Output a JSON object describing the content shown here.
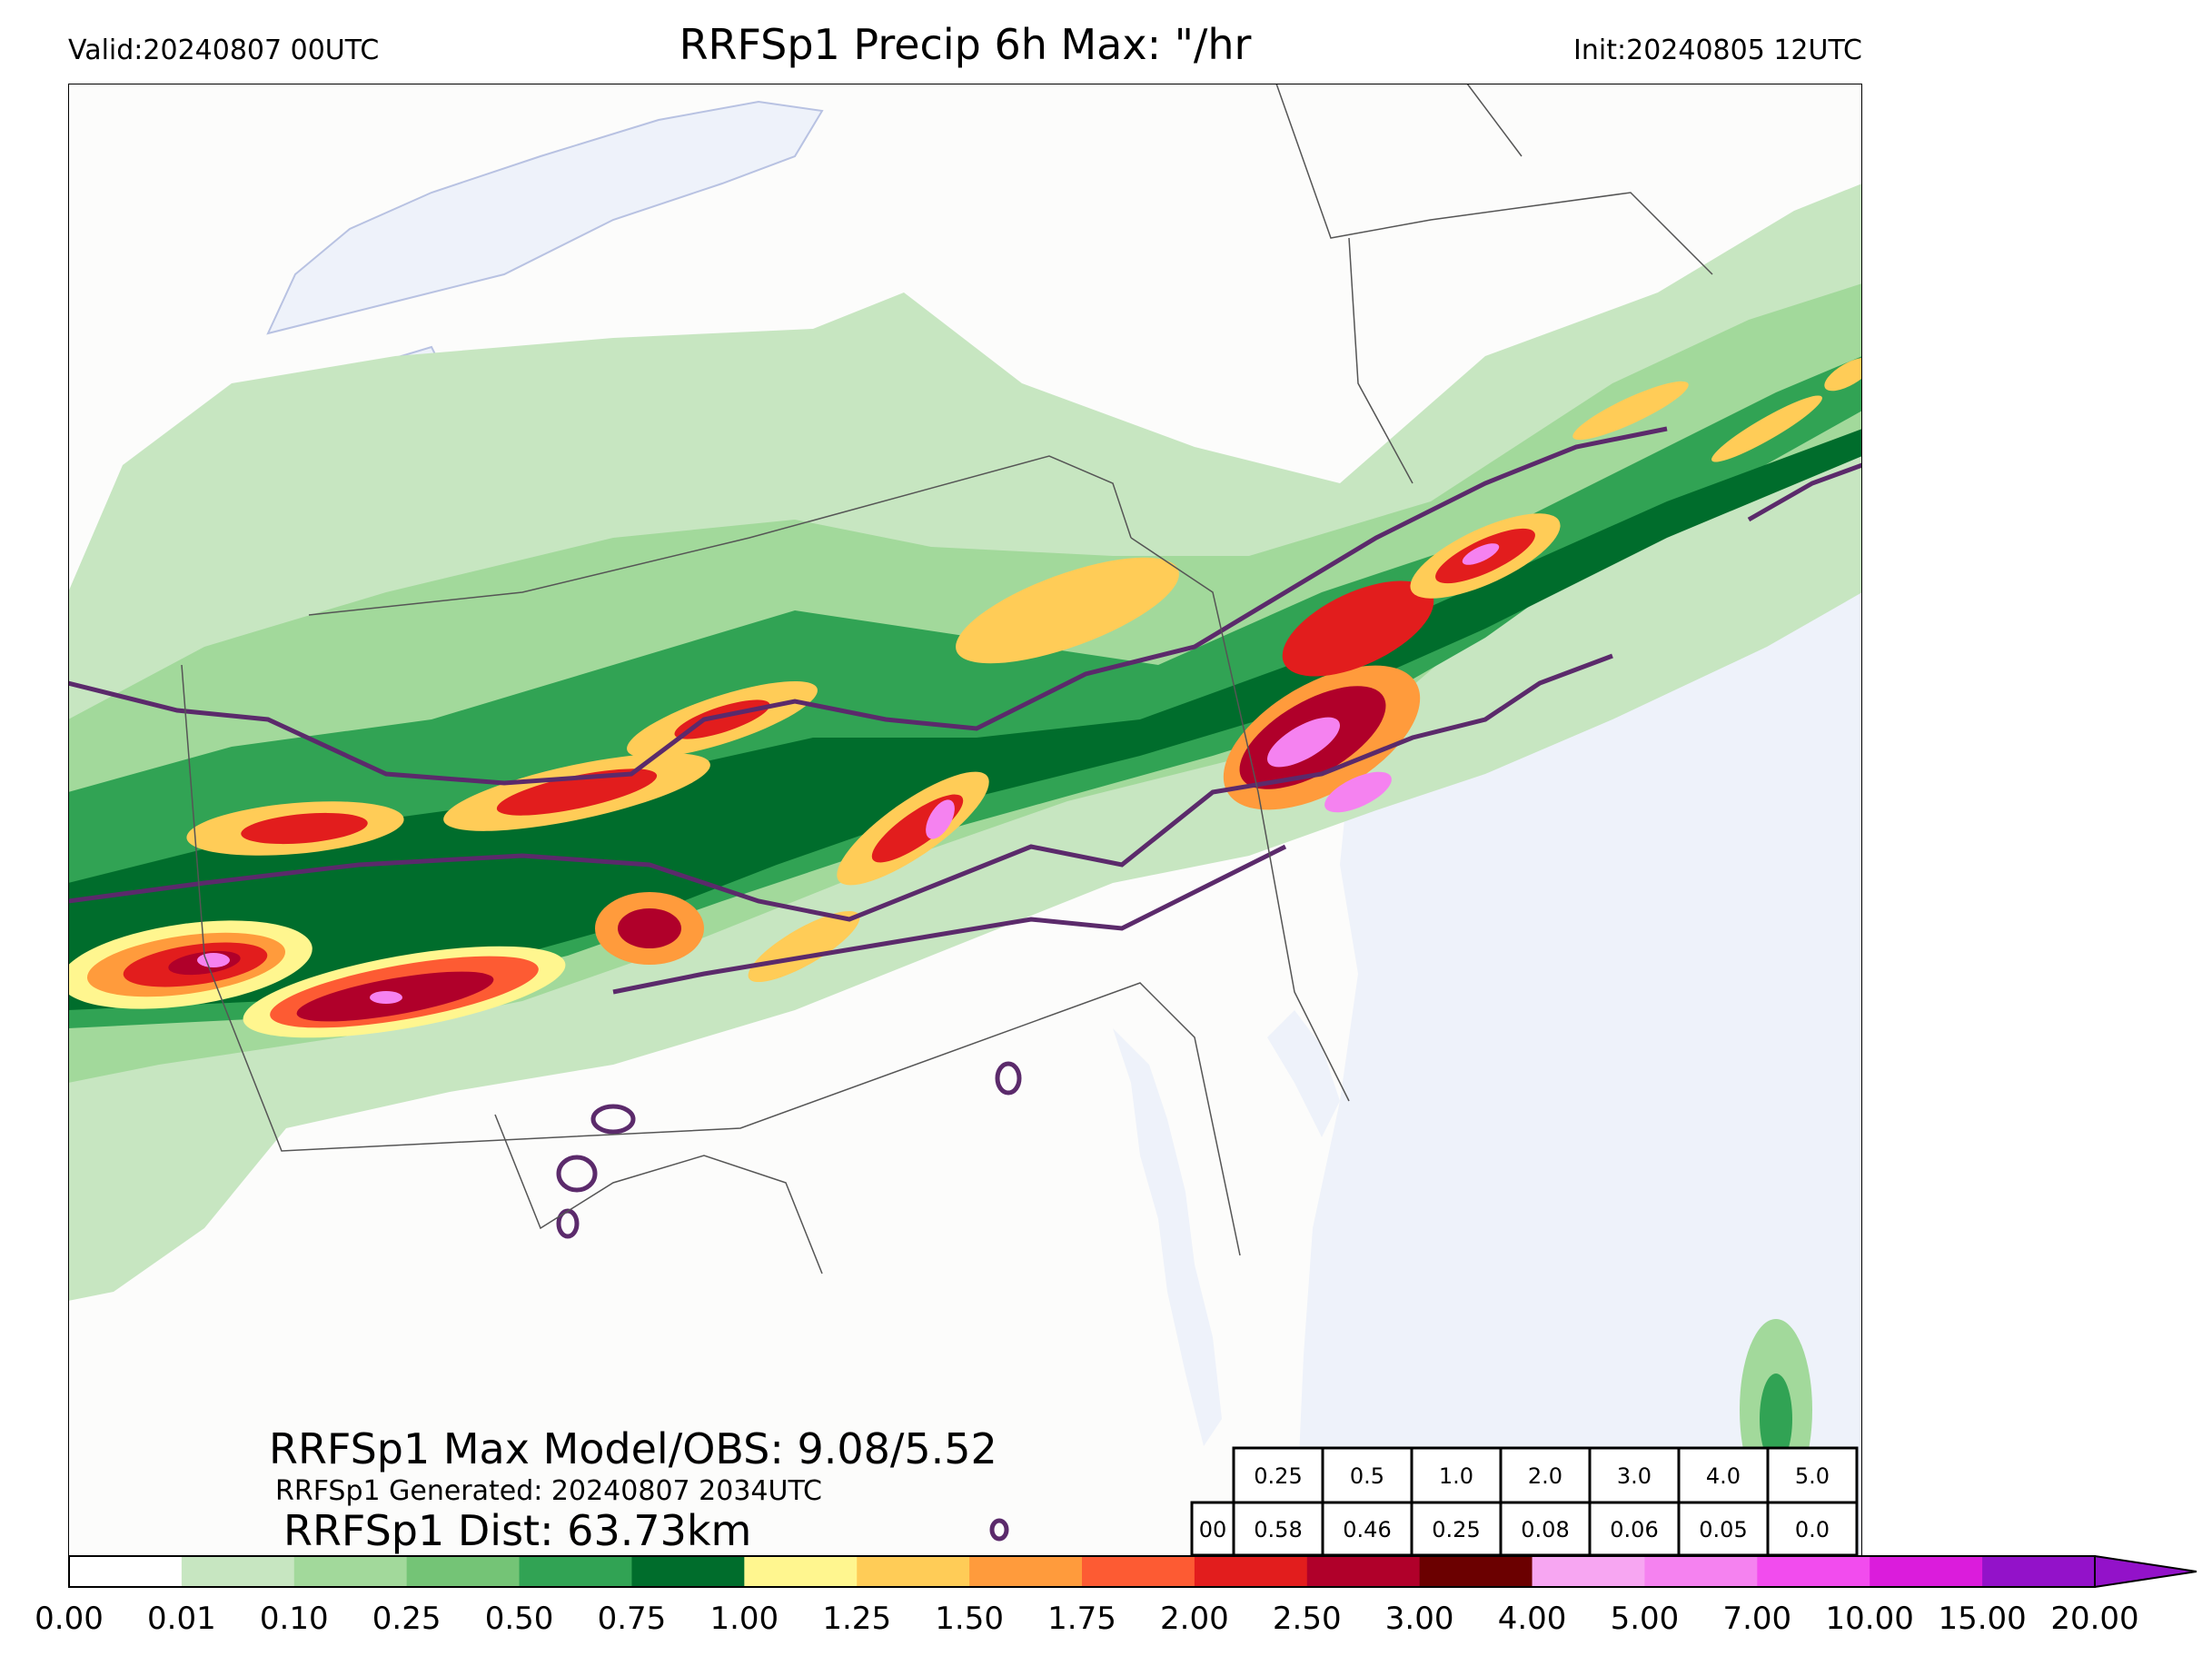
{
  "header": {
    "valid": "Valid:20240807 00UTC",
    "title": "RRFSp1 Precip 6h Max: \"/hr",
    "init": "Init:20240805 12UTC"
  },
  "stats": {
    "max_model_obs": "RRFSp1 Max Model/OBS: 9.08/5.52",
    "generated": "RRFSp1 Generated: 20240807 2034UTC",
    "dist": "RRFSp1 Dist: 63.73km"
  },
  "table": {
    "thresholds": [
      "0.25",
      "0.5",
      "1.0",
      "2.0",
      "3.0",
      "4.0",
      "5.0"
    ],
    "row_label": "00",
    "values": [
      "0.58",
      "0.46",
      "0.25",
      "0.08",
      "0.06",
      "0.05",
      "0.0"
    ]
  },
  "colorbar": {
    "ticks": [
      "0.00",
      "0.01",
      "0.10",
      "0.25",
      "0.50",
      "0.75",
      "1.00",
      "1.25",
      "1.50",
      "1.75",
      "2.00",
      "2.50",
      "3.00",
      "4.00",
      "5.00",
      "7.00",
      "10.00",
      "15.00",
      "20.00"
    ],
    "colors": [
      "#ffffff",
      "#c7e6c1",
      "#a2d99b",
      "#74c476",
      "#31a354",
      "#006d2c",
      "#fff68f",
      "#ffcc57",
      "#ff9b3c",
      "#fd5b33",
      "#e21d1d",
      "#b0002a",
      "#6b0000",
      "#f7a6f2",
      "#f582f0",
      "#f24cee",
      "#db1cdc",
      "#9312c9"
    ],
    "extend_color": "#9312c9"
  },
  "colors": {
    "water": "#eef2fa",
    "land": "#fcfcfb",
    "obs_contour": "#5b2a6b"
  }
}
